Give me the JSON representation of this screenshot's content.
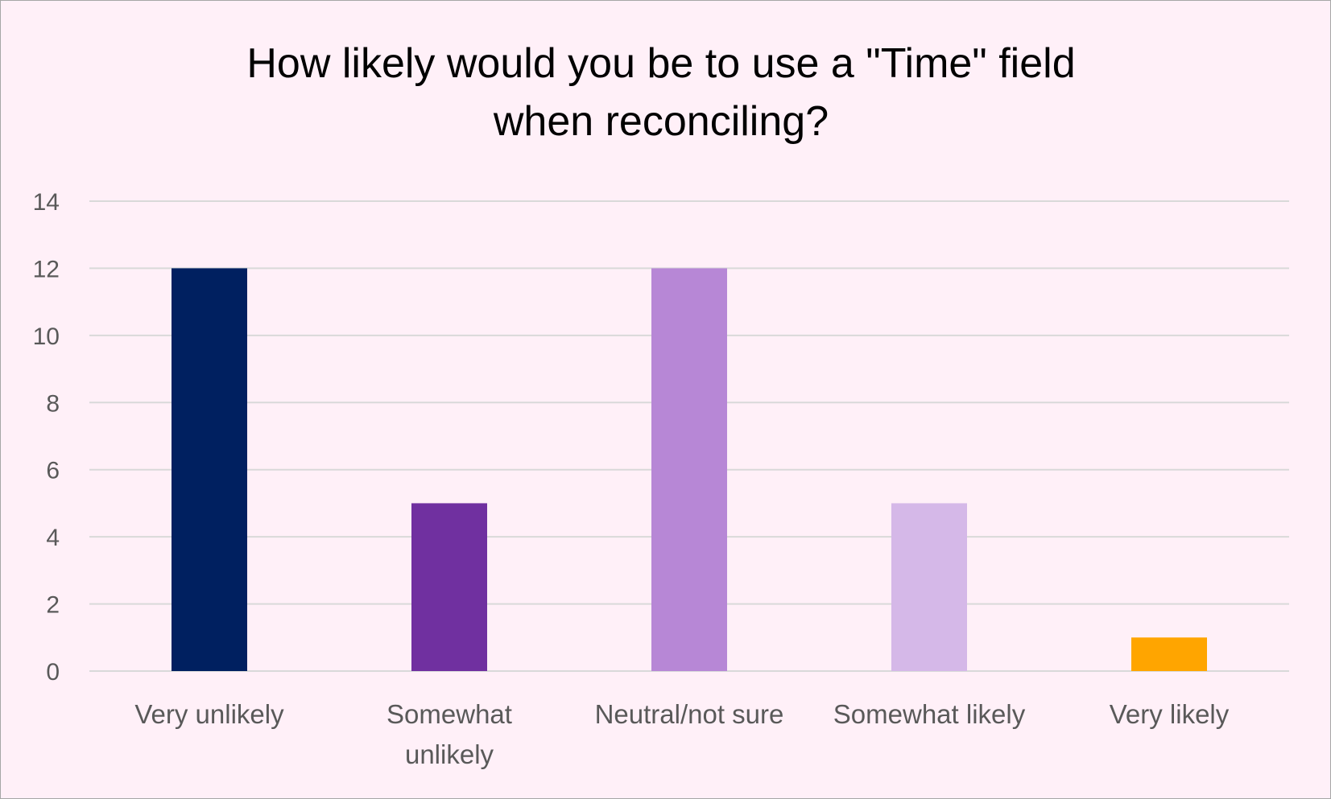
{
  "chart_data": {
    "type": "bar",
    "title": "How likely would you be to use a \"Time\" field\nwhen reconciling?",
    "categories": [
      "Very unlikely",
      "Somewhat unlikely",
      "Neutral/not sure",
      "Somewhat likely",
      "Very likely"
    ],
    "category_lines": [
      [
        "Very unlikely"
      ],
      [
        "Somewhat",
        "unlikely"
      ],
      [
        "Neutral/not sure"
      ],
      [
        "Somewhat likely"
      ],
      [
        "Very likely"
      ]
    ],
    "values": [
      12,
      5,
      12,
      5,
      1
    ],
    "colors": [
      "#002060",
      "#7030a0",
      "#b787d6",
      "#d5b8e8",
      "#ffa500"
    ],
    "ylim": [
      0,
      14
    ],
    "yticks": [
      0,
      2,
      4,
      6,
      8,
      10,
      12,
      14
    ],
    "grid": true,
    "legend": "none",
    "background": "#fff0f8",
    "gridline_color": "#d9d9d9"
  }
}
